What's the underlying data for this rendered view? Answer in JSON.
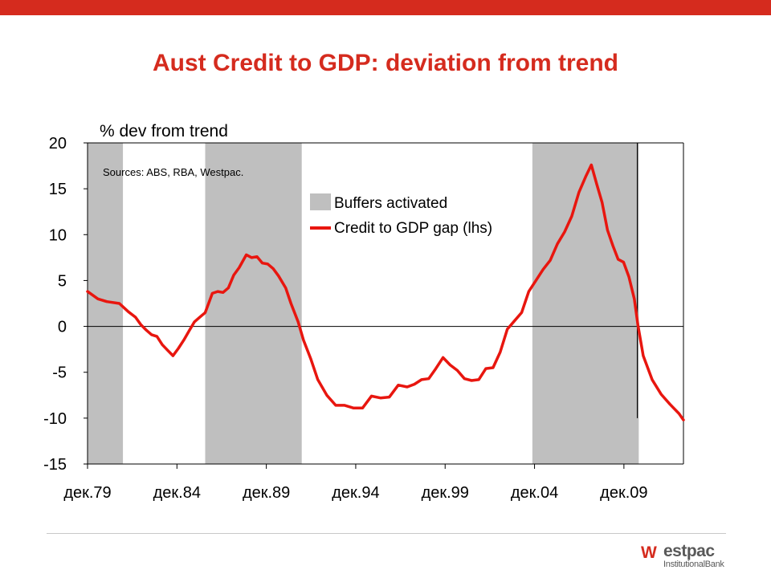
{
  "colors": {
    "brand_red": "#d52b1e",
    "buffer_gray": "#bfbfbf",
    "line_red": "#e8160f"
  },
  "title": "Aust Credit to GDP: deviation from trend",
  "logo": {
    "mark": "W",
    "word": "estpac",
    "sub": "InstitutionalBank"
  },
  "chart_data": {
    "type": "line",
    "title": "Aust Credit to GDP: deviation from trend",
    "ylabel": "% dev from trend",
    "ylim": [
      -15,
      20
    ],
    "yticks": [
      20,
      15,
      10,
      5,
      0,
      -5,
      -10,
      -15
    ],
    "xlim": [
      1979.92,
      2013.25
    ],
    "xticks": [
      {
        "x": 1979.92,
        "label": "дек.79"
      },
      {
        "x": 1984.92,
        "label": "дек.84"
      },
      {
        "x": 1989.92,
        "label": "дек.89"
      },
      {
        "x": 1994.92,
        "label": "дек.94"
      },
      {
        "x": 1999.92,
        "label": "дек.99"
      },
      {
        "x": 2004.92,
        "label": "дек.04"
      },
      {
        "x": 2009.92,
        "label": "дек.09"
      }
    ],
    "annotation": "Sources: ABS, RBA, Westpac.",
    "legend": {
      "placement": "top-right",
      "items": [
        "Buffers activated",
        "Credit to GDP gap (lhs)"
      ]
    },
    "buffers": [
      {
        "start": 1979.92,
        "end": 1981.9
      },
      {
        "start": 1986.5,
        "end": 1991.9
      },
      {
        "start": 2004.8,
        "end": 2010.75
      }
    ],
    "vertical_line": {
      "x": 2010.67,
      "from": 20,
      "to": -10
    },
    "series": [
      {
        "name": "Credit to GDP gap (lhs)",
        "x": [
          1979.92,
          1980.5,
          1981.0,
          1981.7,
          1982.2,
          1982.6,
          1982.9,
          1983.2,
          1983.5,
          1983.8,
          1984.1,
          1984.4,
          1984.7,
          1985.0,
          1985.3,
          1985.6,
          1985.9,
          1986.2,
          1986.5,
          1986.9,
          1987.2,
          1987.5,
          1987.8,
          1988.1,
          1988.4,
          1988.8,
          1989.1,
          1989.4,
          1989.7,
          1990.0,
          1990.3,
          1990.6,
          1991.0,
          1991.3,
          1991.7,
          1992.0,
          1992.4,
          1992.8,
          1993.3,
          1993.8,
          1994.3,
          1994.8,
          1995.3,
          1995.8,
          1996.3,
          1996.8,
          1997.3,
          1997.8,
          1998.2,
          1998.6,
          1999.0,
          1999.4,
          1999.8,
          2000.2,
          2000.6,
          2001.0,
          2001.4,
          2001.8,
          2002.2,
          2002.6,
          2003.0,
          2003.4,
          2003.8,
          2004.2,
          2004.6,
          2005.0,
          2005.4,
          2005.8,
          2006.2,
          2006.6,
          2007.0,
          2007.4,
          2007.8,
          2008.1,
          2008.4,
          2008.7,
          2009.0,
          2009.3,
          2009.6,
          2009.9,
          2010.2,
          2010.5,
          2010.7,
          2011.0,
          2011.5,
          2012.0,
          2012.5,
          2013.0,
          2013.25
        ],
        "y": [
          3.8,
          3.0,
          2.7,
          2.5,
          1.6,
          1.0,
          0.2,
          -0.4,
          -0.9,
          -1.1,
          -2.0,
          -2.6,
          -3.2,
          -2.4,
          -1.5,
          -0.5,
          0.5,
          1.0,
          1.5,
          3.6,
          3.8,
          3.7,
          4.2,
          5.6,
          6.4,
          7.8,
          7.5,
          7.6,
          6.9,
          6.8,
          6.3,
          5.5,
          4.2,
          2.5,
          0.5,
          -1.5,
          -3.5,
          -5.8,
          -7.5,
          -8.6,
          -8.6,
          -8.9,
          -8.9,
          -7.6,
          -7.8,
          -7.7,
          -6.4,
          -6.6,
          -6.3,
          -5.8,
          -5.7,
          -4.6,
          -3.4,
          -4.2,
          -4.8,
          -5.7,
          -5.9,
          -5.8,
          -4.6,
          -4.5,
          -2.8,
          -0.3,
          0.6,
          1.5,
          3.8,
          5.0,
          6.2,
          7.2,
          9.0,
          10.3,
          12.0,
          14.6,
          16.4,
          17.6,
          15.5,
          13.5,
          10.5,
          8.8,
          7.3,
          7.0,
          5.4,
          3.0,
          0.2,
          -3.2,
          -5.8,
          -7.4,
          -8.5,
          -9.5,
          -10.2
        ]
      }
    ]
  }
}
